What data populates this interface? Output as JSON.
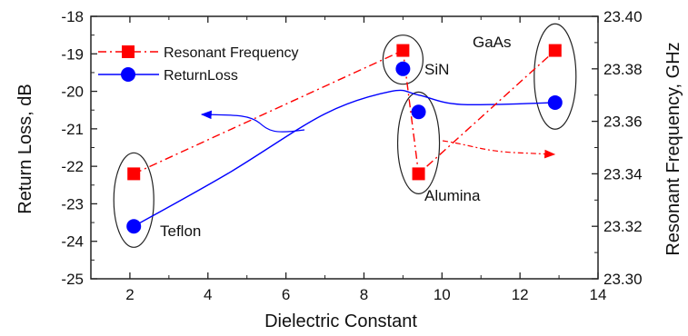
{
  "chart_data": {
    "type": "line",
    "title": "",
    "xlabel": "Dielectric Constant",
    "ylabel_left": "Return Loss, dB",
    "ylabel_right": "Resonant Frequency, GHz",
    "xlim": [
      1,
      14
    ],
    "ylim_left": [
      -25,
      -18
    ],
    "ylim_right": [
      23.3,
      23.4
    ],
    "x_ticks": [
      "2",
      "4",
      "6",
      "8",
      "10",
      "12",
      "14"
    ],
    "y_left_ticks": [
      "-18",
      "-19",
      "-20",
      "-21",
      "-22",
      "-23",
      "-24",
      "-25"
    ],
    "y_right_ticks": [
      "23.40",
      "23.38",
      "23.36",
      "23.34",
      "23.32",
      "23.30"
    ],
    "grid": false,
    "legend_position": "top-left",
    "series": [
      {
        "name": "Resonant Frequency",
        "axis": "right",
        "marker": "square",
        "color": "#ff0000",
        "line_style": "dash-dot",
        "points": [
          {
            "x": 2.1,
            "y": 23.34
          },
          {
            "x": 9.0,
            "y": 23.387
          },
          {
            "x": 9.4,
            "y": 23.34
          },
          {
            "x": 12.9,
            "y": 23.387
          }
        ]
      },
      {
        "name": "ReturnLoss",
        "axis": "left",
        "marker": "circle",
        "color": "#0000ff",
        "line_style": "solid-smooth",
        "points": [
          {
            "x": 2.1,
            "y": -23.6
          },
          {
            "x": 9.0,
            "y": -19.4
          },
          {
            "x": 9.4,
            "y": -20.55
          },
          {
            "x": 12.9,
            "y": -20.3
          }
        ],
        "fit_curve": [
          {
            "x": 2.1,
            "y": -23.6
          },
          {
            "x": 4.5,
            "y": -22.2
          },
          {
            "x": 7.0,
            "y": -20.6
          },
          {
            "x": 8.7,
            "y": -20.0
          },
          {
            "x": 9.4,
            "y": -20.1
          },
          {
            "x": 10.5,
            "y": -20.35
          },
          {
            "x": 12.9,
            "y": -20.3
          }
        ]
      }
    ],
    "annotations": [
      {
        "label": "Teflon",
        "x": 2.1
      },
      {
        "label": "SiN",
        "x": 9.0
      },
      {
        "label": "Alumina",
        "x": 9.4
      },
      {
        "label": "GaAs",
        "x": 12.9
      }
    ],
    "colors": {
      "frequency": "#ff0000",
      "return_loss": "#0000ff",
      "axis": "#222222"
    }
  }
}
